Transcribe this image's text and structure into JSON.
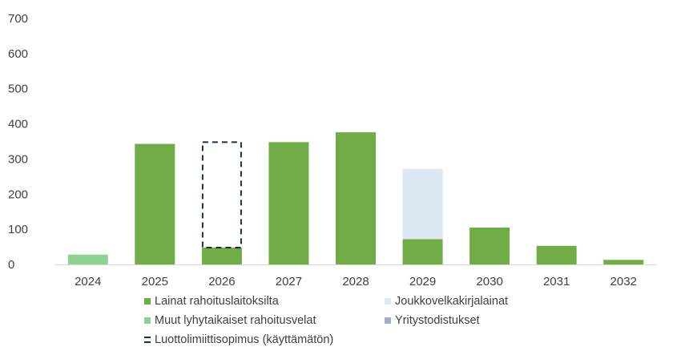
{
  "chart_data": {
    "type": "bar",
    "stacked": true,
    "categories": [
      "2024",
      "2025",
      "2026",
      "2027",
      "2028",
      "2029",
      "2030",
      "2031",
      "2032"
    ],
    "ylim": [
      0,
      700
    ],
    "yticks": [
      "0",
      "100",
      "200",
      "300",
      "400",
      "500",
      "600",
      "700"
    ],
    "grid": false,
    "legend_position": "bottom",
    "series": [
      {
        "name": "Lainat rahoituslaitoksilta",
        "color": "#70ad47",
        "style": "fill",
        "values": [
          0,
          343,
          48,
          348,
          376,
          72,
          105,
          53,
          13
        ]
      },
      {
        "name": "Joukkovelkakirjalainat",
        "color": "#dde8f5",
        "style": "fill",
        "values": [
          0,
          0,
          0,
          0,
          0,
          200,
          0,
          0,
          0
        ]
      },
      {
        "name": "Muut lyhytaikaiset rahoitusvelat",
        "color": "#8fd18f",
        "style": "fill",
        "values": [
          28,
          0,
          0,
          0,
          0,
          0,
          0,
          0,
          0
        ]
      },
      {
        "name": "Yritystodistukset",
        "color": "#a5afc4",
        "style": "fill",
        "values": [
          0,
          0,
          0,
          0,
          0,
          0,
          0,
          0,
          0
        ]
      },
      {
        "name": "Luottolimiittisopimus (käyttämätön)",
        "color": "#1f2d45",
        "style": "dashed-outline",
        "values": [
          0,
          0,
          300,
          0,
          0,
          0,
          0,
          0,
          0
        ]
      }
    ]
  }
}
